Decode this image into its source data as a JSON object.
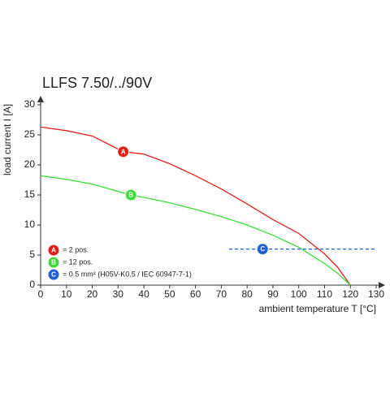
{
  "chart_data": {
    "type": "line",
    "title": "LLFS 7.50/../90V",
    "x_label": "ambient temperature T [°C]",
    "y_label": "load current I [A]",
    "xlim": [
      0,
      130
    ],
    "xticks": [
      0,
      10,
      20,
      30,
      40,
      50,
      60,
      70,
      80,
      90,
      100,
      110,
      120,
      130
    ],
    "ylim": [
      0,
      30
    ],
    "yticks": [
      0,
      5,
      10,
      15,
      20,
      25,
      30
    ],
    "grid": false,
    "series": [
      {
        "name": "= 2 pos.",
        "label": "A",
        "color": "#e0201c",
        "dash": false,
        "x": [
          0,
          10,
          20,
          32,
          40,
          50,
          60,
          70,
          80,
          90,
          100,
          110,
          115,
          120
        ],
        "values": [
          26.3,
          25.7,
          24.8,
          22.2,
          21.8,
          20.2,
          18.2,
          16.0,
          13.5,
          10.9,
          8.6,
          5.2,
          3.0,
          0
        ]
      },
      {
        "name": "= 12 pos.",
        "label": "B",
        "color": "#3ddc3a",
        "dash": false,
        "x": [
          0,
          10,
          20,
          35,
          40,
          50,
          60,
          70,
          80,
          90,
          100,
          110,
          115,
          120
        ],
        "values": [
          18.2,
          17.6,
          16.8,
          15.0,
          14.6,
          13.7,
          12.6,
          11.4,
          10.0,
          8.3,
          6.3,
          3.6,
          2.0,
          0
        ]
      },
      {
        "name": "= 0.5 mm² (H05V-K0.5 / IEC 60947-7-1)",
        "label": "C",
        "color": "#1f5fd8",
        "dash": true,
        "x": [
          73,
          86,
          130
        ],
        "values": [
          6,
          6,
          6
        ]
      }
    ]
  }
}
